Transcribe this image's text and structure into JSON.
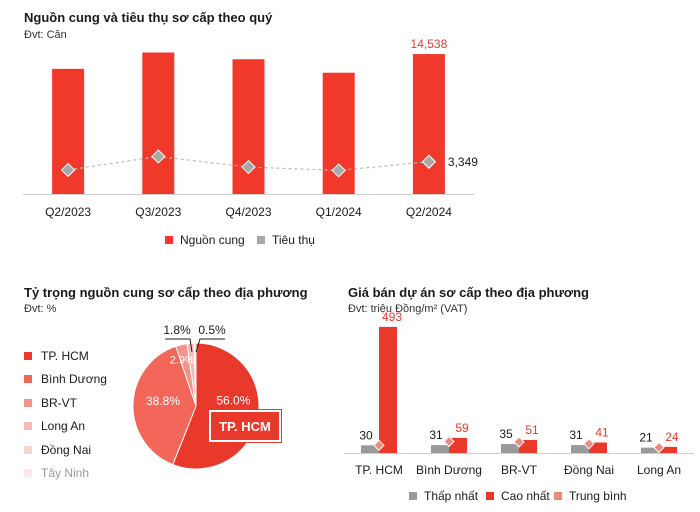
{
  "colors": {
    "supply": "#f0392b",
    "sales": "#a8a8a8",
    "min": "#9a9a9a",
    "max": "#e8392b",
    "avg": "#f08a7a",
    "highlight_text": "#e8392b",
    "pie": [
      "#e8392b",
      "#f2675a",
      "#f4938a",
      "#f7bbb5",
      "#fad3cf",
      "#fce8e6"
    ]
  },
  "chart1": {
    "title": "Nguồn cung và tiêu thụ sơ cấp theo quý",
    "unit": "Đvt: Căn"
  },
  "chart2": {
    "title": "Tỷ trọng nguồn cung sơ cấp theo địa phương",
    "unit": "Đvt: %",
    "badge": "TP. HCM"
  },
  "chart3": {
    "title": "Giá bán dự án sơ cấp theo địa phương",
    "unit": "Đvt: triệu Đồng/m² (VAT)"
  },
  "chart_data": [
    {
      "type": "bar",
      "title": "Nguồn cung và tiêu thụ sơ cấp theo quý",
      "categories": [
        "Q2/2023",
        "Q3/2023",
        "Q4/2023",
        "Q1/2024",
        "Q2/2024"
      ],
      "series": [
        {
          "name": "Nguồn cung",
          "kind": "bar",
          "values": [
            13000,
            14700,
            14000,
            12600,
            14538
          ]
        },
        {
          "name": "Tiêu thụ",
          "kind": "line-diamond",
          "values": [
            2500,
            3900,
            2800,
            2450,
            3349
          ]
        }
      ],
      "data_labels": [
        "14,538",
        "3,349"
      ],
      "ylim": [
        0,
        16000
      ],
      "legend": "bottom-center",
      "grid": false
    },
    {
      "type": "pie",
      "title": "Tỷ trọng nguồn cung sơ cấp theo địa phương",
      "labels": [
        "TP. HCM",
        "Bình Dương",
        "BR-VT",
        "Long An",
        "Đồng Nai",
        "Tây Ninh"
      ],
      "values": [
        56.0,
        38.8,
        2.9,
        1.8,
        0.5,
        0.0
      ],
      "value_labels": [
        "56.0%",
        "38.8%",
        "2.9%",
        "1.8%",
        "0.5%",
        ""
      ],
      "legend": "left"
    },
    {
      "type": "bar",
      "title": "Giá bán dự án sơ cấp theo địa phương",
      "categories": [
        "TP. HCM",
        "Bình Dương",
        "BR-VT",
        "Đồng Nai",
        "Long An"
      ],
      "series": [
        {
          "name": "Thấp nhất",
          "kind": "bar",
          "values": [
            30,
            31,
            35,
            31,
            21
          ]
        },
        {
          "name": "Cao nhất",
          "kind": "bar",
          "values": [
            493,
            59,
            51,
            41,
            24
          ]
        },
        {
          "name": "Trung bình",
          "kind": "diamond",
          "values": [
            30,
            45,
            43,
            36,
            22
          ]
        }
      ],
      "ylim": [
        0,
        520
      ],
      "legend": "bottom-center",
      "grid": false
    }
  ]
}
